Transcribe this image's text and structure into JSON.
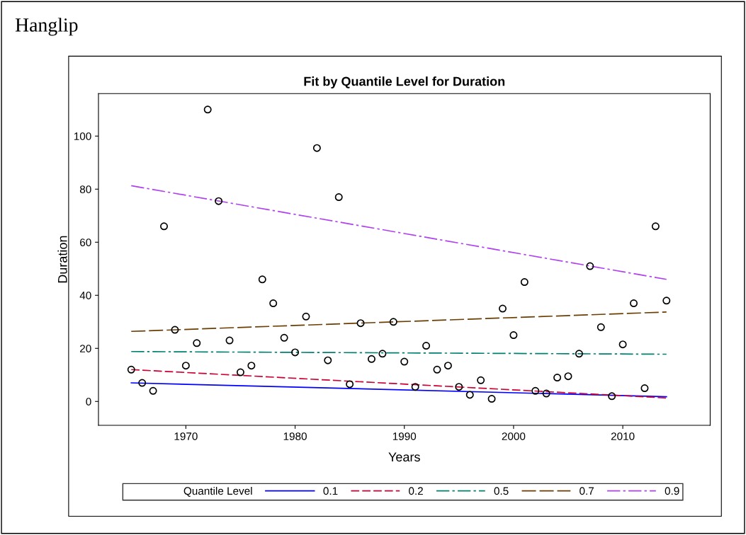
{
  "chart_data": {
    "type": "scatter",
    "title": "Hanglip",
    "subtitle": "Fit by Quantile Level for Duration",
    "xlabel": "Years",
    "ylabel": "Duration",
    "legend_title": "Quantile Level",
    "legend": "bottom",
    "grid": false,
    "xlim": [
      1962,
      2018
    ],
    "ylim": [
      -9,
      116
    ],
    "xticks": [
      1970,
      1980,
      1990,
      2000,
      2010
    ],
    "yticks": [
      0,
      20,
      40,
      60,
      80,
      100
    ],
    "series": [
      {
        "type": "scatter",
        "color": "#000000",
        "marker": "circle",
        "x": [
          1965,
          1966,
          1967,
          1968,
          1969,
          1970,
          1971,
          1972,
          1973,
          1974,
          1975,
          1976,
          1977,
          1978,
          1979,
          1980,
          1981,
          1982,
          1983,
          1984,
          1985,
          1986,
          1987,
          1988,
          1989,
          1990,
          1991,
          1992,
          1993,
          1994,
          1995,
          1996,
          1997,
          1998,
          1999,
          2000,
          2001,
          2002,
          2003,
          2004,
          2005,
          2006,
          2007,
          2008,
          2009,
          2010,
          2011,
          2012,
          2013,
          2014
        ],
        "values": [
          12,
          7,
          4,
          66,
          27,
          13.5,
          22,
          110,
          75.5,
          23,
          11,
          13.5,
          46,
          37,
          24,
          18.5,
          32,
          95.5,
          15.5,
          77,
          6.5,
          29.5,
          16,
          18,
          30,
          15,
          5.5,
          21,
          12,
          13.5,
          5.5,
          2.5,
          8,
          1,
          35,
          25,
          45,
          4,
          3,
          9,
          9.5,
          18,
          51,
          28,
          2,
          21.5,
          37,
          5,
          66,
          38
        ]
      },
      {
        "type": "line",
        "name": "0.1",
        "color": "#0000ff",
        "line_style": "solid",
        "x": [
          1965,
          2014
        ],
        "values": [
          7,
          1.8
        ]
      },
      {
        "type": "line",
        "name": "0.2",
        "color": "#cc0033",
        "line_style": "dashed",
        "x": [
          1965,
          2014
        ],
        "values": [
          12,
          1.3
        ]
      },
      {
        "type": "line",
        "name": "0.5",
        "color": "#008070",
        "line_style": "dashdot",
        "x": [
          1965,
          2014
        ],
        "values": [
          18.8,
          17.8
        ]
      },
      {
        "type": "line",
        "name": "0.7",
        "color": "#6b3d00",
        "line_style": "longdash",
        "x": [
          1965,
          2014
        ],
        "values": [
          26.4,
          33.7
        ]
      },
      {
        "type": "line",
        "name": "0.9",
        "color": "#b040f0",
        "line_style": "dashdot",
        "x": [
          1965,
          2014
        ],
        "values": [
          81.3,
          46
        ]
      }
    ]
  }
}
